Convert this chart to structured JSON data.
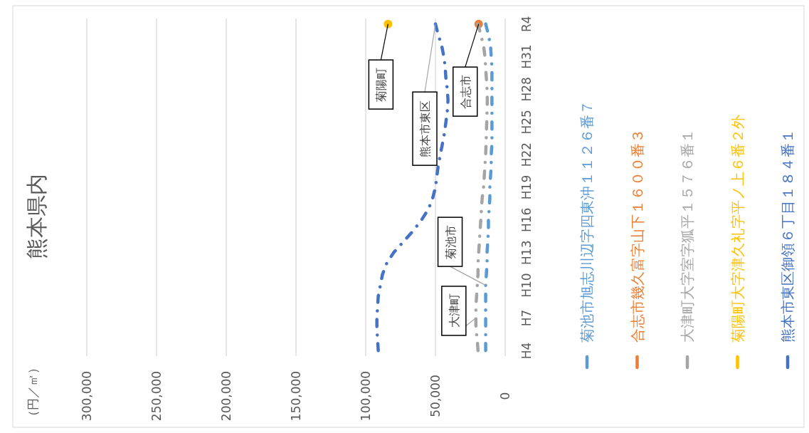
{
  "chart_data": {
    "type": "line",
    "orientation": "horizontal",
    "title": "熊本県内",
    "categories": [
      "R4",
      null,
      null,
      "H31",
      null,
      null,
      "H28",
      null,
      null,
      "H25",
      null,
      null,
      "H22",
      null,
      null,
      "H19",
      null,
      null,
      "H16",
      null,
      null,
      "H13",
      null,
      null,
      "H10",
      null,
      null,
      "H7",
      null,
      null,
      "H4"
    ],
    "xlim": [
      300000,
      0
    ],
    "xticks": [
      {
        "value": 300000,
        "label": "300,000"
      },
      {
        "value": 250000,
        "label": "250,000"
      },
      {
        "value": 200000,
        "label": "200,000"
      },
      {
        "value": 150000,
        "label": "150,000"
      },
      {
        "value": 100000,
        "label": "100,000"
      },
      {
        "value": 50000,
        "label": "50,000"
      },
      {
        "value": 0,
        "label": "0"
      }
    ],
    "grid": "x",
    "legend": "right",
    "line_style": "dashed",
    "series": [
      {
        "name": "菊池市旭志川辺字四東沖１１２６番７",
        "color": "#5b9bd5",
        "values": [
          14000,
          12000,
          10500,
          10000,
          9500,
          9500,
          9500,
          9500,
          9500,
          9500,
          9500,
          9500,
          10000,
          10000,
          10500,
          11000,
          11000,
          11500,
          12000,
          12000,
          12500,
          13000,
          13000,
          13500,
          14000,
          14000,
          14000,
          14000,
          14000,
          14000,
          14000
        ]
      },
      {
        "name": "合志市幾久富字山下１６００番３",
        "color": "#ed7d31",
        "marker": "circle",
        "values": [
          19000,
          null,
          null,
          null,
          null,
          null,
          null,
          null,
          null,
          null,
          null,
          null,
          null,
          null,
          null,
          null,
          null,
          null,
          null,
          null,
          null,
          null,
          null,
          null,
          null,
          null,
          null,
          null,
          null,
          null,
          null
        ]
      },
      {
        "name": "大津町大字室字狐平１５７６番１",
        "color": "#a5a5a5",
        "values": [
          19500,
          17500,
          15500,
          14500,
          14000,
          13500,
          13000,
          12800,
          13000,
          13200,
          13500,
          13700,
          14000,
          14500,
          15000,
          15500,
          16500,
          17000,
          17500,
          18000,
          18500,
          19000,
          19500,
          19500,
          20000,
          20500,
          21000,
          21000,
          21000,
          20000,
          19500
        ]
      },
      {
        "name": "菊陽町大字津久礼字平ノ上６番２外",
        "color": "#ffc000",
        "marker": "circle",
        "values": [
          84000,
          null,
          null,
          null,
          null,
          null,
          null,
          null,
          null,
          null,
          null,
          null,
          null,
          null,
          null,
          null,
          null,
          null,
          null,
          null,
          null,
          null,
          null,
          null,
          null,
          null,
          null,
          null,
          null,
          null,
          null
        ]
      },
      {
        "name": "熊本市東区御領６丁目１８４番１",
        "color": "#4472c4",
        "values": [
          50000,
          48000,
          45500,
          44000,
          43000,
          42500,
          41500,
          41000,
          41500,
          42500,
          43500,
          45000,
          46500,
          48000,
          49000,
          50000,
          52000,
          55000,
          60000,
          66000,
          73000,
          80000,
          85000,
          88000,
          89500,
          91000,
          91500,
          92000,
          92000,
          91500,
          91000
        ]
      }
    ],
    "annotations": [
      "（円／㎡）",
      {
        "text": "菊陽町",
        "x": 84000,
        "y": "R4"
      },
      {
        "text": "熊本市東区",
        "x": 50000,
        "y": "R4"
      },
      {
        "text": "合志市",
        "x": 19000,
        "y": "R4"
      },
      {
        "text": "菊池市",
        "x": 14000,
        "y": "H10"
      },
      {
        "text": "大津町",
        "x": 21000,
        "y": "H7"
      }
    ]
  }
}
